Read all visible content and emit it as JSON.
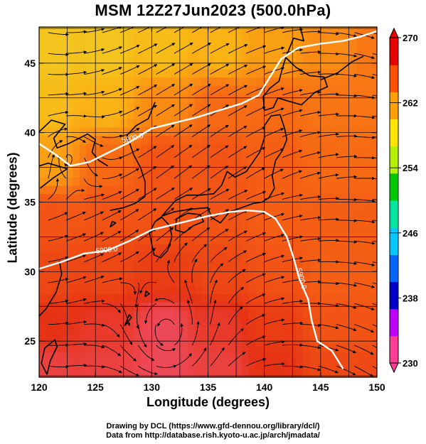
{
  "chart_data": {
    "type": "heatmap",
    "title": "MSM 12Z27Jun2023 (500.0hPa)",
    "xlabel": "Longitude (degrees)",
    "ylabel": "Latitude  (degrees)",
    "xlim": [
      120,
      150
    ],
    "ylim": [
      22.4,
      47.6
    ],
    "x_ticks": [
      "120",
      "125",
      "130",
      "135",
      "140",
      "145",
      "150"
    ],
    "y_ticks": [
      "25",
      "30",
      "35",
      "40",
      "45"
    ],
    "grid": true,
    "colorbar": {
      "min": 230,
      "max": 270,
      "ticks": [
        "270",
        "262",
        "254",
        "246",
        "238",
        "230"
      ],
      "colors": [
        "#ff3c96",
        "#c000ff",
        "#0000c8",
        "#0066ff",
        "#00c8ff",
        "#00e6a0",
        "#00c800",
        "#b4f000",
        "#ffe600",
        "#ffa000",
        "#ff5000",
        "#e60000"
      ]
    },
    "contours": [
      {
        "label": "5900.0",
        "points": [
          [
            120,
            30.2
          ],
          [
            122,
            30.7
          ],
          [
            124,
            31.3
          ],
          [
            126,
            31.5
          ],
          [
            128,
            32.2
          ],
          [
            130,
            33.0
          ],
          [
            131.5,
            33.3
          ],
          [
            133,
            33.6
          ],
          [
            135,
            34.0
          ],
          [
            137,
            34.3
          ],
          [
            138.5,
            34.4
          ],
          [
            140,
            34.3
          ],
          [
            141,
            33.8
          ],
          [
            142,
            32.5
          ],
          [
            142.6,
            31.0
          ],
          [
            143.1,
            29.5
          ],
          [
            143.9,
            28.0
          ],
          [
            144.2,
            26.5
          ],
          [
            144.7,
            25.0
          ],
          [
            146,
            24.3
          ],
          [
            147,
            23.0
          ]
        ]
      },
      {
        "label": "5900.0",
        "points": [
          [
            120,
            39.2
          ],
          [
            121.5,
            38.4
          ],
          [
            122.8,
            37.6
          ],
          [
            124.5,
            37.9
          ],
          [
            126,
            38.5
          ],
          [
            128,
            39.3
          ],
          [
            130,
            40.3
          ],
          [
            132,
            40.7
          ],
          [
            134,
            41.1
          ],
          [
            136,
            41.6
          ],
          [
            138,
            42.1
          ],
          [
            139.5,
            42.7
          ],
          [
            140.5,
            44.0
          ],
          [
            141.5,
            45.3
          ],
          [
            143,
            46.1
          ],
          [
            145,
            46.4
          ],
          [
            147,
            46.6
          ],
          [
            148.5,
            46.9
          ],
          [
            150,
            47.3
          ]
        ]
      }
    ],
    "color_field": [
      {
        "lon": 121,
        "lat": 46,
        "value": 261
      },
      {
        "lon": 126,
        "lat": 46,
        "value": 261
      },
      {
        "lon": 131,
        "lat": 46,
        "value": 261.5
      },
      {
        "lon": 136,
        "lat": 46,
        "value": 262
      },
      {
        "lon": 141,
        "lat": 46,
        "value": 263
      },
      {
        "lon": 146,
        "lat": 46,
        "value": 264
      },
      {
        "lon": 150,
        "lat": 46,
        "value": 265
      },
      {
        "lon": 121,
        "lat": 42,
        "value": 261.5
      },
      {
        "lon": 126,
        "lat": 42,
        "value": 262
      },
      {
        "lon": 131,
        "lat": 42,
        "value": 264
      },
      {
        "lon": 136,
        "lat": 42,
        "value": 265.5
      },
      {
        "lon": 141,
        "lat": 42,
        "value": 265.5
      },
      {
        "lon": 146,
        "lat": 42,
        "value": 265
      },
      {
        "lon": 150,
        "lat": 42,
        "value": 265
      },
      {
        "lon": 121,
        "lat": 38,
        "value": 263
      },
      {
        "lon": 126,
        "lat": 38,
        "value": 265.5
      },
      {
        "lon": 131,
        "lat": 38,
        "value": 266.5
      },
      {
        "lon": 136,
        "lat": 38,
        "value": 266.5
      },
      {
        "lon": 141,
        "lat": 38,
        "value": 266
      },
      {
        "lon": 146,
        "lat": 38,
        "value": 265.5
      },
      {
        "lon": 150,
        "lat": 38,
        "value": 265.5
      },
      {
        "lon": 121,
        "lat": 34,
        "value": 266.5
      },
      {
        "lon": 126,
        "lat": 34,
        "value": 266.5
      },
      {
        "lon": 131,
        "lat": 34,
        "value": 266.5
      },
      {
        "lon": 136,
        "lat": 34,
        "value": 266.5
      },
      {
        "lon": 141,
        "lat": 34,
        "value": 266
      },
      {
        "lon": 146,
        "lat": 34,
        "value": 266
      },
      {
        "lon": 150,
        "lat": 34,
        "value": 266
      },
      {
        "lon": 121,
        "lat": 30,
        "value": 267
      },
      {
        "lon": 126,
        "lat": 30,
        "value": 267
      },
      {
        "lon": 131,
        "lat": 30,
        "value": 267.5
      },
      {
        "lon": 136,
        "lat": 30,
        "value": 267
      },
      {
        "lon": 141,
        "lat": 30,
        "value": 266.5
      },
      {
        "lon": 146,
        "lat": 30,
        "value": 266
      },
      {
        "lon": 150,
        "lat": 30,
        "value": 266
      },
      {
        "lon": 121,
        "lat": 26,
        "value": 268
      },
      {
        "lon": 126,
        "lat": 26,
        "value": 268.5
      },
      {
        "lon": 131,
        "lat": 26,
        "value": 269.5
      },
      {
        "lon": 136,
        "lat": 26,
        "value": 268.5
      },
      {
        "lon": 141,
        "lat": 26,
        "value": 267.5
      },
      {
        "lon": 146,
        "lat": 26,
        "value": 266.5
      },
      {
        "lon": 150,
        "lat": 26,
        "value": 266.5
      },
      {
        "lon": 121,
        "lat": 23,
        "value": 269
      },
      {
        "lon": 126,
        "lat": 23,
        "value": 269
      },
      {
        "lon": 131,
        "lat": 23,
        "value": 269.5
      },
      {
        "lon": 136,
        "lat": 23,
        "value": 269
      },
      {
        "lon": 141,
        "lat": 23,
        "value": 268
      },
      {
        "lon": 146,
        "lat": 23,
        "value": 267
      },
      {
        "lon": 150,
        "lat": 23,
        "value": 267
      }
    ]
  },
  "credits": {
    "line1": "Drawing by DCL (https://www.gfd-dennou.org/library/dcl/)",
    "line2": "Data from http://database.rish.kyoto-u.ac.jp/arch/jmadata/"
  }
}
